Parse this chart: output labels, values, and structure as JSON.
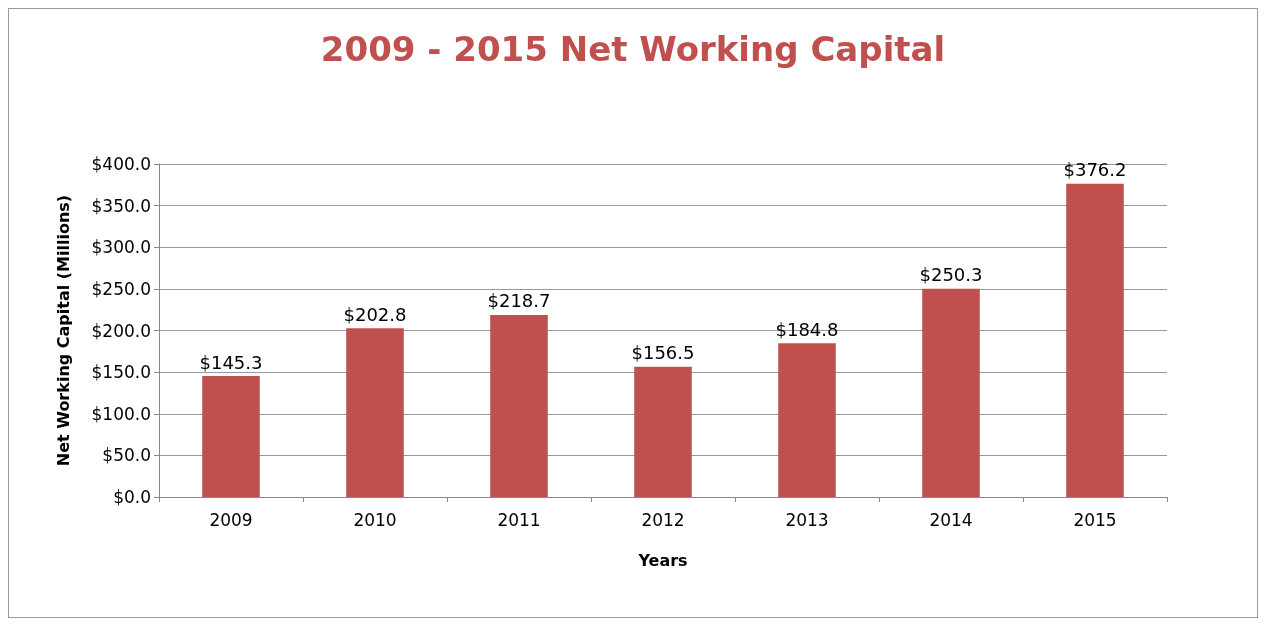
{
  "chart_data": {
    "type": "bar",
    "title": "2009 - 2015 Net Working Capital",
    "xlabel": "Years",
    "ylabel": "Net Working Capital (Millions)",
    "categories": [
      "2009",
      "2010",
      "2011",
      "2012",
      "2013",
      "2014",
      "2015"
    ],
    "values": [
      145.3,
      202.8,
      218.7,
      156.5,
      184.8,
      250.3,
      376.2
    ],
    "value_labels": [
      "$145.3",
      "$202.8",
      "$218.7",
      "$156.5",
      "$184.8",
      "$250.3",
      "$376.2"
    ],
    "color": "#c0504d",
    "ylim": [
      0,
      400
    ],
    "yticks": [
      {
        "value": 0,
        "label": "$0.0"
      },
      {
        "value": 50,
        "label": "$50.0"
      },
      {
        "value": 100,
        "label": "$100.0"
      },
      {
        "value": 150,
        "label": "$150.0"
      },
      {
        "value": 200,
        "label": "$200.0"
      },
      {
        "value": 250,
        "label": "$250.0"
      },
      {
        "value": 300,
        "label": "$300.0"
      },
      {
        "value": 350,
        "label": "$350.0"
      },
      {
        "value": 400,
        "label": "$400.0"
      }
    ],
    "grid": "y"
  }
}
